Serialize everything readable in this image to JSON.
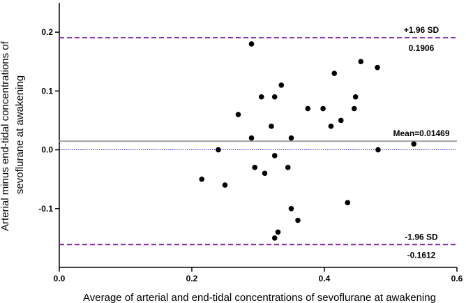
{
  "chart_data": {
    "type": "scatter",
    "xlabel": "Average of arterial and end-tidal concentrations of sevoflurane at awakening",
    "ylabel_lines": [
      "Arterial minus end-tidal concentrations of",
      "sevoflurane at awakening"
    ],
    "xlim": [
      0.0,
      0.6
    ],
    "ylim": [
      -0.2,
      0.25
    ],
    "x_ticks": [
      0.0,
      0.2,
      0.4,
      0.6
    ],
    "x_tick_labels": [
      "0.0",
      "0.2",
      "0.4",
      "0.6"
    ],
    "y_ticks": [
      -0.1,
      0.0,
      0.1,
      0.2
    ],
    "y_tick_labels": [
      "-0.1",
      "0.0",
      "0.1",
      "0.2"
    ],
    "grid": false,
    "reference_lines": {
      "upper": {
        "value": 0.1906,
        "label": "+1.96 SD",
        "value_label": "0.1906",
        "color": "#7a1fa2",
        "style": "dashed"
      },
      "mean": {
        "value": 0.01469,
        "label": "Mean=0.01469",
        "color": "#9e9e9e",
        "style": "solid"
      },
      "lower": {
        "value": -0.1612,
        "label": "-1.96 SD",
        "value_label": "-0.1612",
        "color": "#7a1fa2",
        "style": "dashed"
      },
      "zero": {
        "value": 0.0,
        "color": "#2b2bd6",
        "style": "dotted"
      }
    },
    "points": [
      {
        "x": 0.215,
        "y": -0.05
      },
      {
        "x": 0.24,
        "y": 0.0
      },
      {
        "x": 0.25,
        "y": -0.06
      },
      {
        "x": 0.27,
        "y": 0.06
      },
      {
        "x": 0.29,
        "y": 0.18
      },
      {
        "x": 0.29,
        "y": 0.02
      },
      {
        "x": 0.295,
        "y": -0.03
      },
      {
        "x": 0.305,
        "y": 0.09
      },
      {
        "x": 0.31,
        "y": -0.04
      },
      {
        "x": 0.32,
        "y": 0.04
      },
      {
        "x": 0.325,
        "y": 0.09
      },
      {
        "x": 0.325,
        "y": -0.01
      },
      {
        "x": 0.325,
        "y": -0.15
      },
      {
        "x": 0.33,
        "y": -0.14
      },
      {
        "x": 0.335,
        "y": 0.11
      },
      {
        "x": 0.345,
        "y": -0.03
      },
      {
        "x": 0.35,
        "y": 0.02
      },
      {
        "x": 0.35,
        "y": -0.1
      },
      {
        "x": 0.36,
        "y": -0.12
      },
      {
        "x": 0.375,
        "y": 0.07
      },
      {
        "x": 0.398,
        "y": 0.07
      },
      {
        "x": 0.41,
        "y": 0.04
      },
      {
        "x": 0.415,
        "y": 0.13
      },
      {
        "x": 0.425,
        "y": 0.05
      },
      {
        "x": 0.435,
        "y": -0.09
      },
      {
        "x": 0.445,
        "y": 0.07
      },
      {
        "x": 0.447,
        "y": 0.09
      },
      {
        "x": 0.455,
        "y": 0.15
      },
      {
        "x": 0.48,
        "y": 0.14
      },
      {
        "x": 0.481,
        "y": 0.0
      },
      {
        "x": 0.535,
        "y": 0.01
      }
    ]
  }
}
